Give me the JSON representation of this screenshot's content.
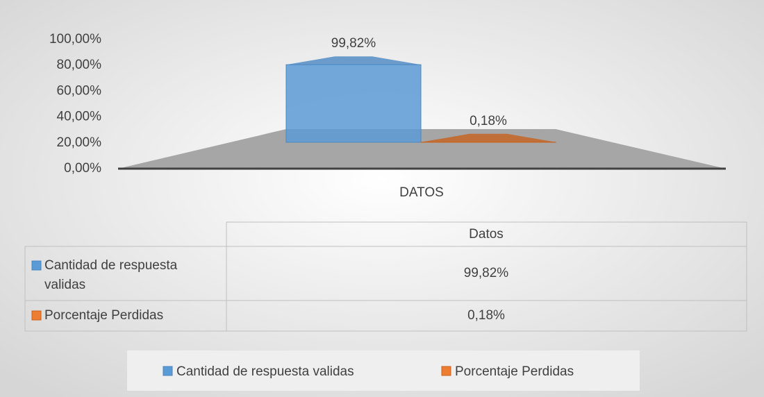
{
  "chart_data": {
    "type": "bar3d",
    "categories": [
      "DATOS"
    ],
    "series": [
      {
        "name": "Cantidad de respuesta validas",
        "color": "#5b9bd5",
        "values": [
          99.82
        ],
        "value_labels": [
          "99,82%"
        ]
      },
      {
        "name": "Porcentaje Perdidas",
        "color": "#ed7d31",
        "values": [
          0.18
        ],
        "value_labels": [
          "0,18%"
        ]
      }
    ],
    "ylim": [
      0,
      100
    ],
    "yticks": [
      {
        "value": 0,
        "label": "0,00%"
      },
      {
        "value": 20,
        "label": "20,00%"
      },
      {
        "value": 40,
        "label": "40,00%"
      },
      {
        "value": 60,
        "label": "60,00%"
      },
      {
        "value": 80,
        "label": "80,00%"
      },
      {
        "value": 100,
        "label": "100,00%"
      }
    ],
    "table_header": "Datos",
    "legend": "bottom"
  }
}
